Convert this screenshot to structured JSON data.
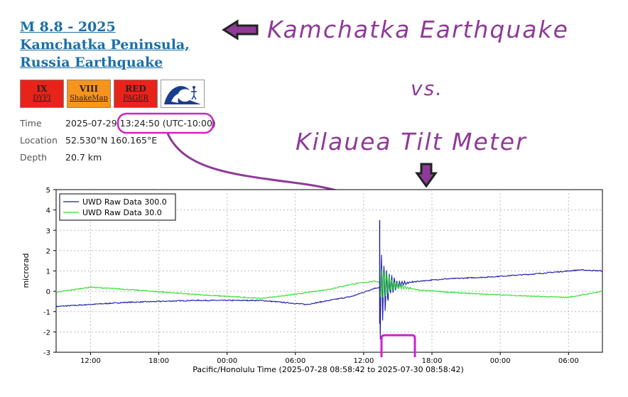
{
  "event": {
    "title": "M 8.8 - 2025 Kamchatka Peninsula, Russia Earthquake",
    "badges": [
      {
        "top": "IX",
        "bottom": "DYFI",
        "bg": "#e8231a"
      },
      {
        "top": "VIII",
        "bottom": "ShakeMap",
        "bg": "#f7941d"
      },
      {
        "top": "RED",
        "bottom": "PAGER",
        "bg": "#e8231a"
      }
    ],
    "tsunami_icon": "tsunami-wave-icon",
    "details": [
      {
        "label": "Time",
        "value": "2025-07-29 13:24:50 (UTC-10:00)"
      },
      {
        "label": "Location",
        "value": "52.530°N 160.165°E"
      },
      {
        "label": "Depth",
        "value": "20.7 km"
      }
    ]
  },
  "annotations": {
    "headline": "Kamchatka Earthquake",
    "vs": "vs.",
    "subtitle": "Kilauea Tilt Meter",
    "color": "#8f3a98",
    "highlight_color": "#cc22cc"
  },
  "chart_data": {
    "type": "line",
    "xlabel": "Pacific/Honolulu Time (2025-07-28 08:58:42 to 2025-07-30 08:58:42)",
    "ylabel": "microrad",
    "ylim": [
      -3,
      5
    ],
    "yticks": [
      "5",
      "4",
      "3",
      "2",
      "1",
      "0",
      "-1",
      "-2",
      "-3"
    ],
    "xticks": [
      "12:00",
      "18:00",
      "00:00",
      "06:00",
      "12:00",
      "18:00",
      "00:00",
      "06:00"
    ],
    "grid": true,
    "legend_position": "top-left",
    "series": [
      {
        "name": "UWD Raw Data 300.0",
        "color": "#1a1aa8",
        "x_hours": [
          0,
          6,
          12,
          18,
          22,
          26,
          28,
          30,
          32,
          34,
          38,
          42,
          44,
          46,
          48
        ],
        "values": [
          -0.75,
          -0.55,
          -0.45,
          -0.45,
          -0.65,
          -0.25,
          0.15,
          0.35,
          0.5,
          0.6,
          0.7,
          0.85,
          0.95,
          1.05,
          1.0
        ]
      },
      {
        "name": "UWD Raw Data 30.0",
        "color": "#33dd33",
        "x_hours": [
          0,
          3,
          6,
          12,
          18,
          21,
          24,
          26,
          28,
          30,
          32,
          36,
          42,
          45,
          48
        ],
        "values": [
          -0.05,
          0.2,
          0.1,
          -0.15,
          -0.35,
          -0.15,
          0.1,
          0.35,
          0.5,
          0.25,
          0.05,
          -0.1,
          -0.25,
          -0.3,
          0.0
        ]
      }
    ],
    "event_spike": {
      "x_hour": 28.43,
      "max": 3.5,
      "min": -1.6
    }
  }
}
